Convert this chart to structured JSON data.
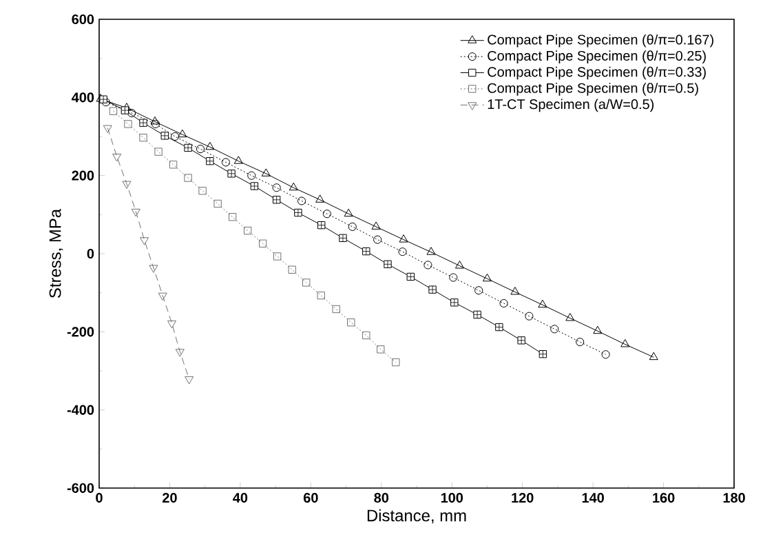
{
  "chart_data": {
    "type": "line",
    "xlabel": "Distance, mm",
    "ylabel": "Stress, MPa",
    "xlim": [
      0,
      180
    ],
    "ylim": [
      -600,
      600
    ],
    "xticks": [
      0,
      20,
      40,
      60,
      80,
      100,
      120,
      140,
      160,
      180
    ],
    "yticks": [
      -600,
      -400,
      -200,
      0,
      200,
      400,
      600
    ],
    "grid": false,
    "legend": "top right",
    "series": [
      {
        "name": "Compact Pipe Specimen (θ/π=0.167)",
        "color": "#000000",
        "marker": "triangle",
        "line_style": "solid",
        "x": [
          0.4,
          7.8,
          15.8,
          23.6,
          31.4,
          39.5,
          47.3,
          55.1,
          62.6,
          70.7,
          78.5,
          86.3,
          94.1,
          102.2,
          110,
          117.9,
          125.7,
          133.5,
          141.3,
          149.1,
          157.2
        ],
        "values": [
          396,
          373,
          338,
          305,
          273,
          237,
          205,
          169,
          138,
          102,
          69,
          36,
          4,
          -31,
          -64,
          -98,
          -131,
          -165,
          -198,
          -232,
          -265
        ]
      },
      {
        "name": "Compact Pipe Specimen (θ/π=0.25)",
        "color": "#000000",
        "marker": "circle",
        "line_style": "dotted",
        "x": [
          1.9,
          9.2,
          16.0,
          21.5,
          28.7,
          35.9,
          43.2,
          50.3,
          57.4,
          64.6,
          71.8,
          78.9,
          86.0,
          93.2,
          100.4,
          107.6,
          114.7,
          121.9,
          129.1,
          136.3,
          143.6
        ],
        "values": [
          388,
          360,
          332,
          300,
          268,
          234,
          200,
          169,
          135,
          102,
          69,
          36,
          5,
          -29,
          -61,
          -94,
          -127,
          -160,
          -193,
          -226,
          -258
        ]
      },
      {
        "name": "Compact Pipe Specimen (θ/π=0.33)",
        "color": "#000000",
        "marker": "square-cross",
        "line_style": "solid",
        "x": [
          1.2,
          7.3,
          12.5,
          18.6,
          25.2,
          31.4,
          37.5,
          44.0,
          50.3,
          56.4,
          63.0,
          69.1,
          75.7,
          81.8,
          88.3,
          94.5,
          100.7,
          107.2,
          113.4,
          119.7,
          125.8
        ],
        "values": [
          395,
          367,
          335,
          302,
          271,
          237,
          205,
          173,
          138,
          105,
          73,
          40,
          6,
          -27,
          -59,
          -92,
          -125,
          -156,
          -188,
          -222,
          -257
        ]
      },
      {
        "name": "Compact Pipe Specimen (θ/π=0.5)",
        "color": "#707070",
        "marker": "square",
        "line_style": "dotted",
        "x": [
          4.0,
          8.2,
          12.5,
          16.8,
          21.0,
          25.2,
          29.3,
          33.6,
          37.8,
          42.1,
          46.4,
          50.5,
          54.7,
          58.7,
          62.9,
          67.2,
          71.4,
          75.7,
          79.8,
          84.1
        ],
        "values": [
          365,
          332,
          297,
          261,
          228,
          194,
          161,
          128,
          94,
          59,
          26,
          -7,
          -41,
          -74,
          -107,
          -142,
          -176,
          -209,
          -245,
          -278
        ]
      },
      {
        "name": "1T-CT Specimen (a/W=0.5)",
        "color": "#707070",
        "marker": "triangle-down",
        "line_style": "dashed",
        "x": [
          2.4,
          5.0,
          7.8,
          10.4,
          12.8,
          15.4,
          18.0,
          20.6,
          22.9,
          25.5
        ],
        "values": [
          322,
          249,
          179,
          108,
          35,
          -36,
          -107,
          -178,
          -251,
          -321
        ]
      }
    ]
  }
}
